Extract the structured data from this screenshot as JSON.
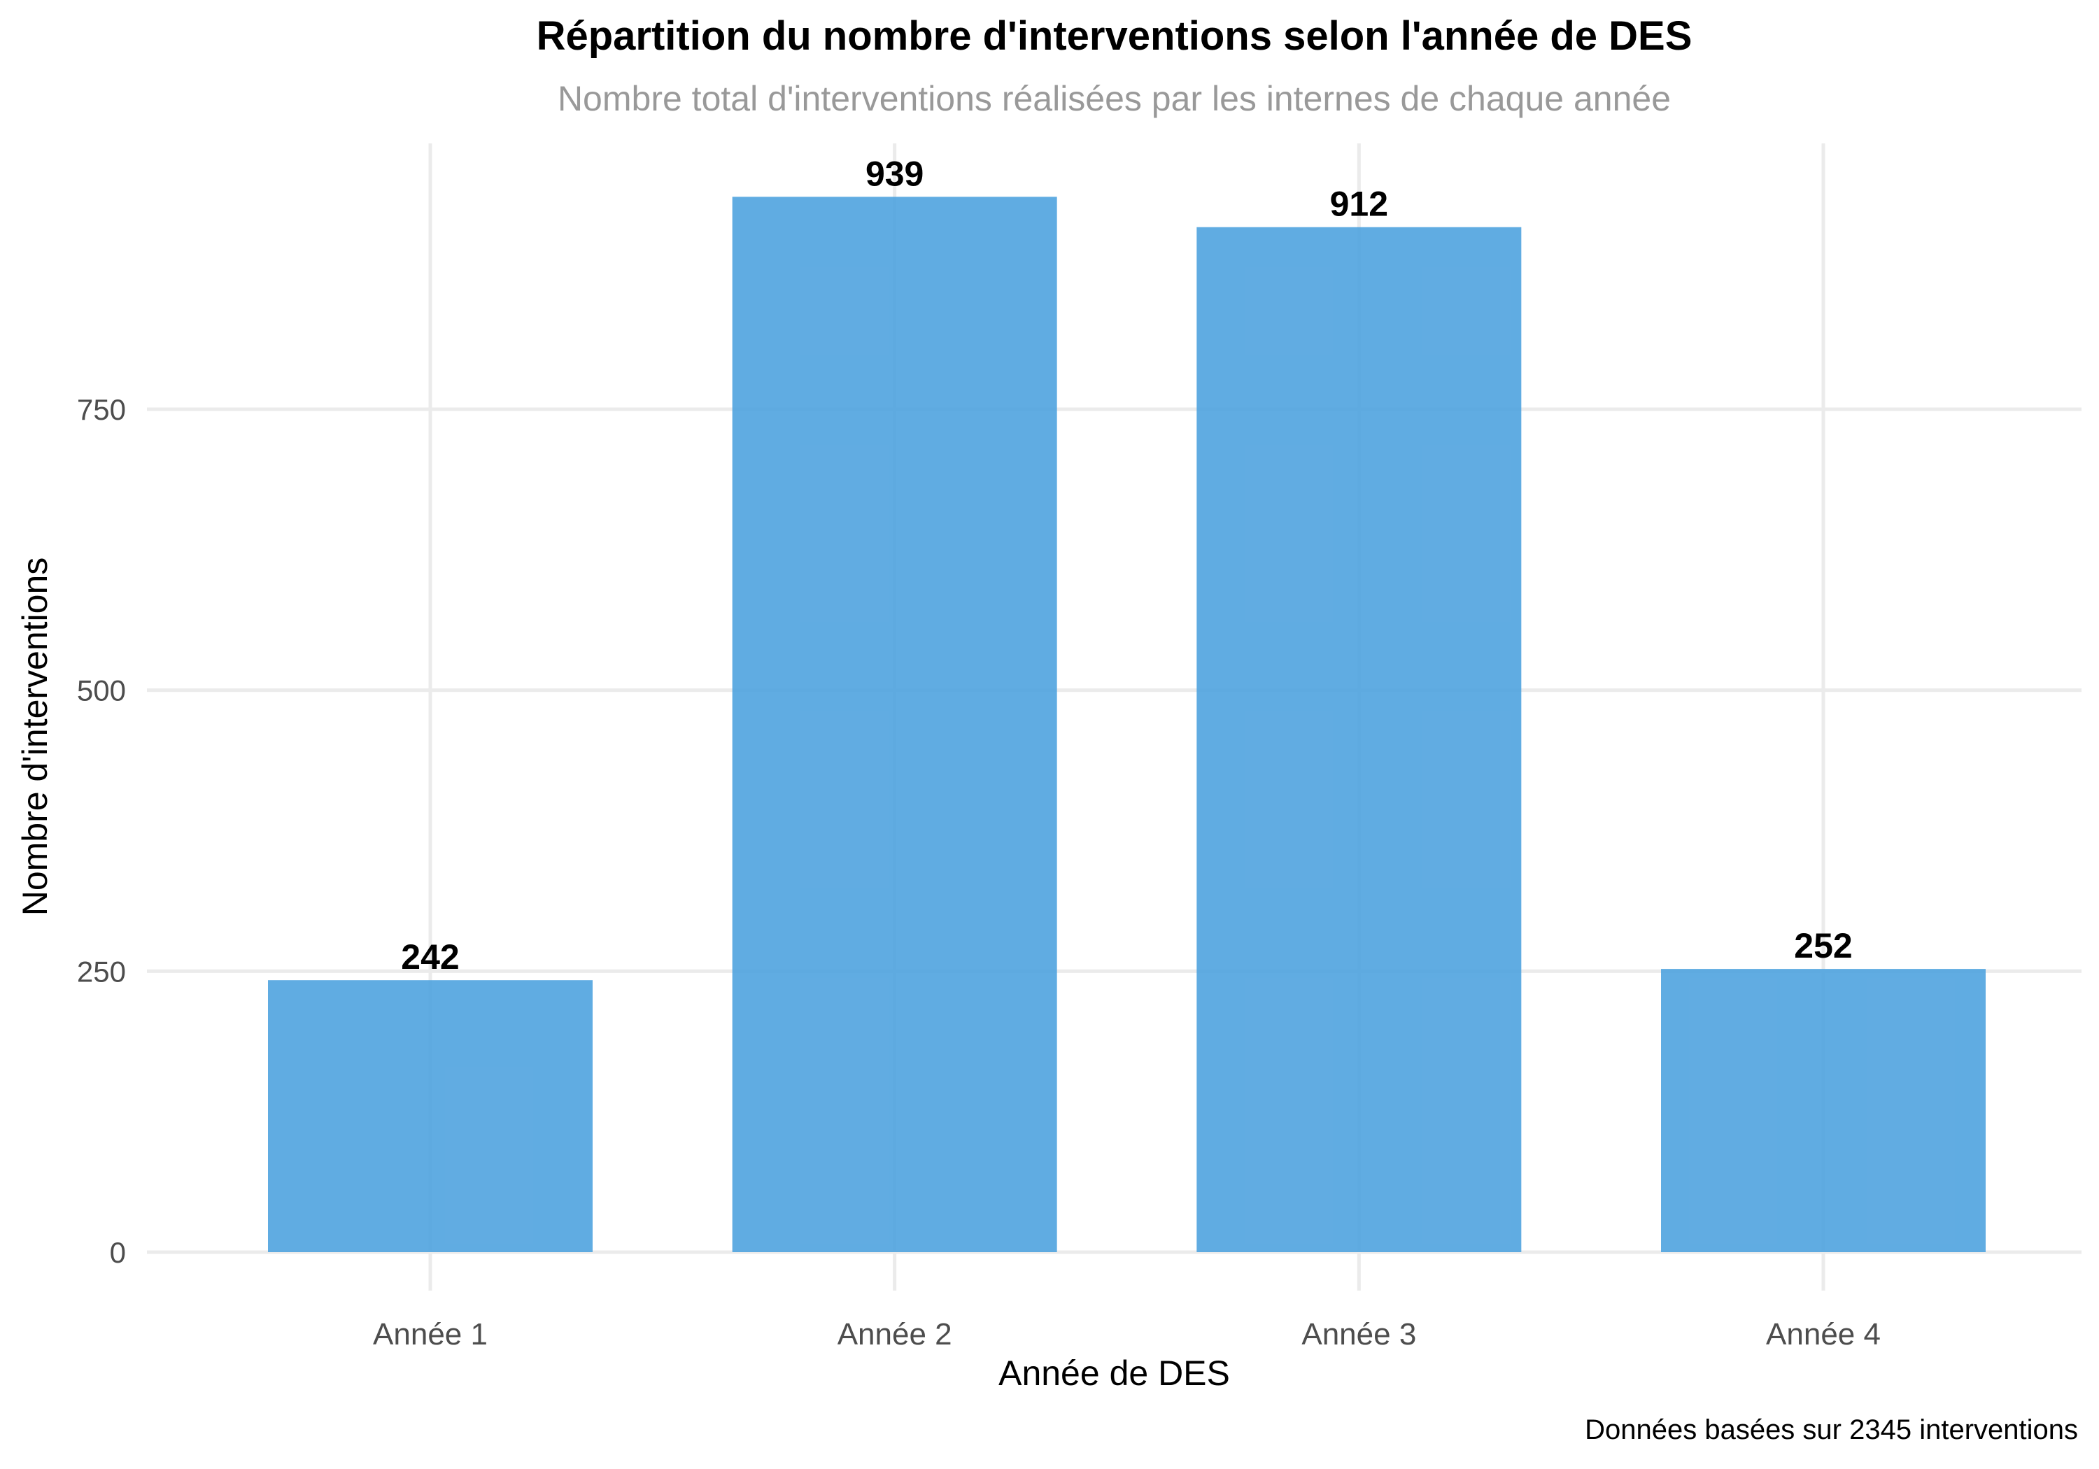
{
  "chart_data": {
    "type": "bar",
    "title": "Répartition du nombre d'interventions selon l'année de DES",
    "subtitle": "Nombre total d'interventions réalisées par les internes de chaque année",
    "xlabel": "Année de DES",
    "ylabel": "Nombre d'interventions",
    "caption": "Données basées sur 2345 interventions",
    "categories": [
      "Année 1",
      "Année 2",
      "Année 3",
      "Année 4"
    ],
    "values": [
      242,
      939,
      912,
      252
    ],
    "yticks": [
      0,
      250,
      500,
      750
    ],
    "ylim": [
      0,
      985
    ],
    "grid": true,
    "bar_color": "#4FA3DF"
  }
}
